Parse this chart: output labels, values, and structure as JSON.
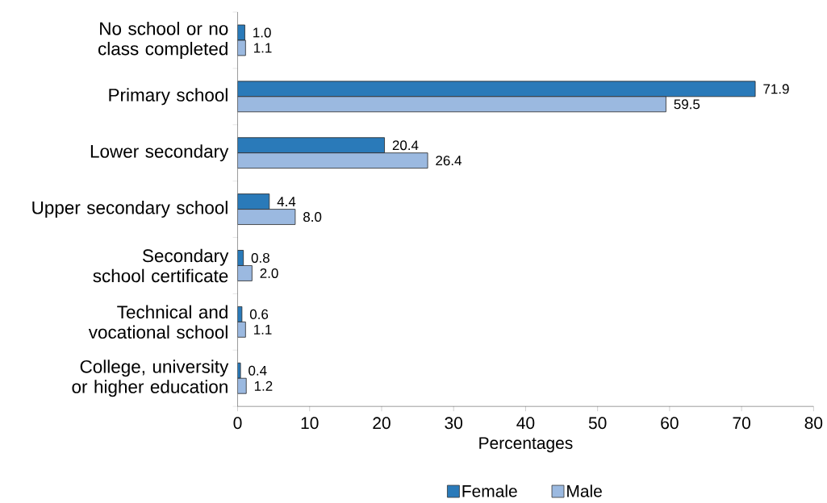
{
  "chart_data": {
    "type": "bar",
    "orientation": "horizontal",
    "xlabel": "Percentages",
    "categories": [
      "No school or no class completed",
      "Primary school",
      "Lower secondary",
      "Upper secondary school",
      "Secondary school certificate",
      "Technical and vocational school",
      "College, university or higher education"
    ],
    "series": [
      {
        "name": "Female",
        "color": "#2a7ab9",
        "values": [
          1.0,
          71.9,
          20.4,
          4.4,
          0.8,
          0.6,
          0.4
        ],
        "value_labels": [
          "1.0",
          "71.9",
          "20.4",
          "4.4",
          "0.8",
          "0.6",
          "0.4"
        ]
      },
      {
        "name": "Male",
        "color": "#9bb9e0",
        "values": [
          1.1,
          59.5,
          26.4,
          8.0,
          2.0,
          1.1,
          1.2
        ],
        "value_labels": [
          "1.1",
          "59.5",
          "26.4",
          "8.0",
          "2.0",
          "1.1",
          "1.2"
        ]
      }
    ],
    "xlim": [
      0,
      80
    ],
    "xticks": [
      0,
      10,
      20,
      30,
      40,
      50,
      60,
      70,
      80
    ],
    "grid": false,
    "legend": "bottom"
  }
}
